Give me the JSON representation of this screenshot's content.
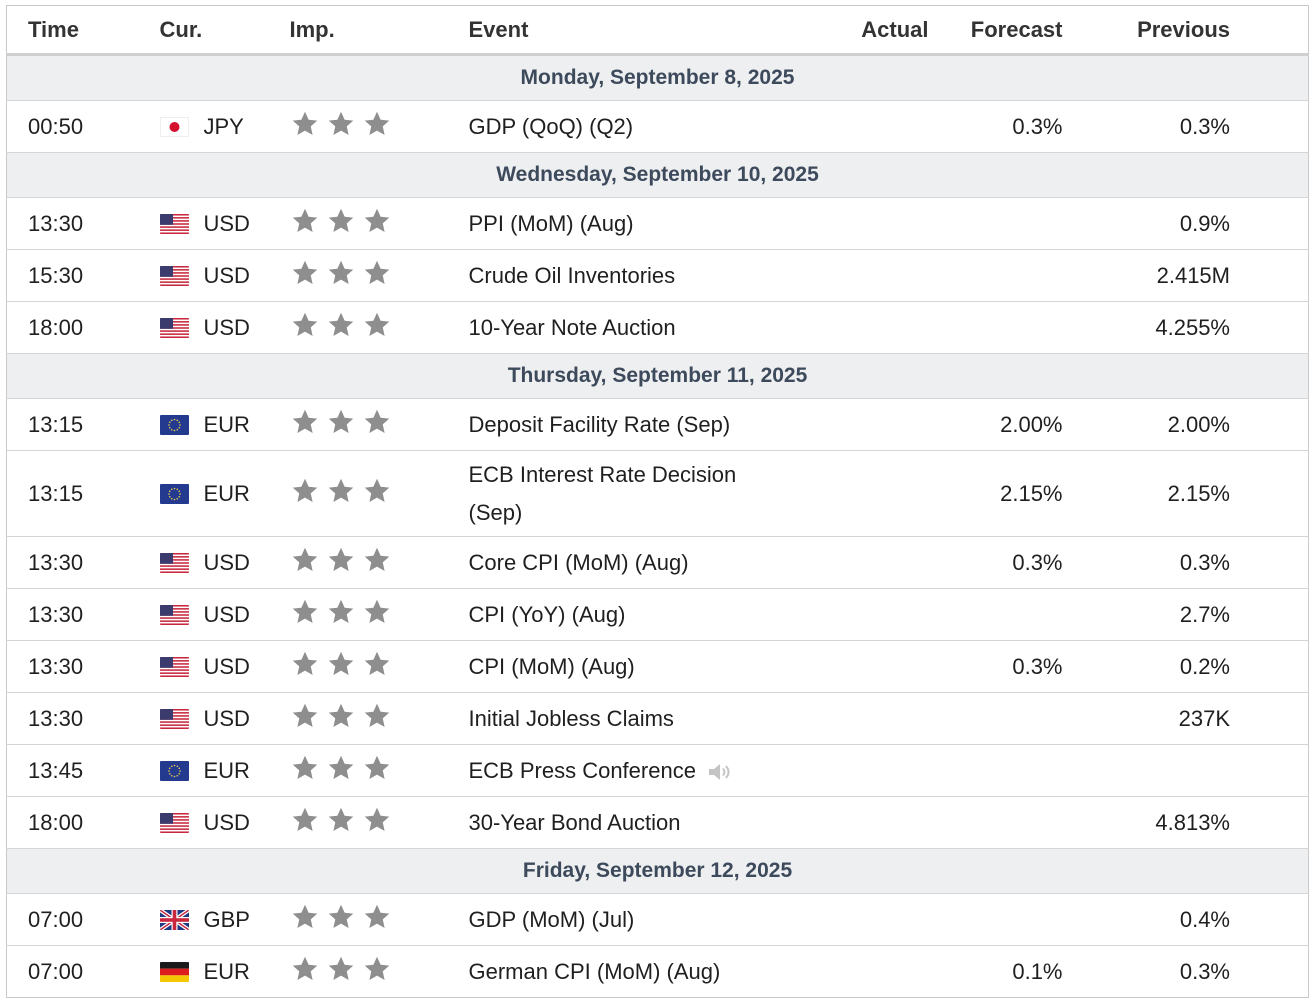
{
  "headers": {
    "time": "Time",
    "cur": "Cur.",
    "imp": "Imp.",
    "event": "Event",
    "actual": "Actual",
    "forecast": "Forecast",
    "previous": "Previous"
  },
  "colors": {
    "day_bg": "#eeeff1",
    "day_text": "#3d4a5c",
    "star": "#8e8e8e",
    "border": "#d5d5d5"
  },
  "sections": [
    {
      "day": "Monday, September 8, 2025",
      "rows": [
        {
          "time": "00:50",
          "flag": "jp-flag-icon",
          "cur": "JPY",
          "event": "GDP (QoQ) (Q2)",
          "actual": "",
          "forecast": "0.3%",
          "previous": "0.3%"
        }
      ]
    },
    {
      "day": "Wednesday, September 10, 2025",
      "rows": [
        {
          "time": "13:30",
          "flag": "us-flag-icon",
          "cur": "USD",
          "event": "PPI (MoM) (Aug)",
          "actual": "",
          "forecast": "",
          "previous": "0.9%"
        },
        {
          "time": "15:30",
          "flag": "us-flag-icon",
          "cur": "USD",
          "event": "Crude Oil Inventories",
          "actual": "",
          "forecast": "",
          "previous": "2.415M"
        },
        {
          "time": "18:00",
          "flag": "us-flag-icon",
          "cur": "USD",
          "event": "10-Year Note Auction",
          "actual": "",
          "forecast": "",
          "previous": "4.255%"
        }
      ]
    },
    {
      "day": "Thursday, September 11, 2025",
      "rows": [
        {
          "time": "13:15",
          "flag": "eu-flag-icon",
          "cur": "EUR",
          "event": "Deposit Facility Rate (Sep)",
          "actual": "",
          "forecast": "2.00%",
          "previous": "2.00%"
        },
        {
          "time": "13:15",
          "flag": "eu-flag-icon",
          "cur": "EUR",
          "event": "ECB Interest Rate Decision (Sep)",
          "actual": "",
          "forecast": "2.15%",
          "previous": "2.15%",
          "tall": true
        },
        {
          "time": "13:30",
          "flag": "us-flag-icon",
          "cur": "USD",
          "event": "Core CPI (MoM) (Aug)",
          "actual": "",
          "forecast": "0.3%",
          "previous": "0.3%"
        },
        {
          "time": "13:30",
          "flag": "us-flag-icon",
          "cur": "USD",
          "event": "CPI (YoY) (Aug)",
          "actual": "",
          "forecast": "",
          "previous": "2.7%"
        },
        {
          "time": "13:30",
          "flag": "us-flag-icon",
          "cur": "USD",
          "event": "CPI (MoM) (Aug)",
          "actual": "",
          "forecast": "0.3%",
          "previous": "0.2%"
        },
        {
          "time": "13:30",
          "flag": "us-flag-icon",
          "cur": "USD",
          "event": "Initial Jobless Claims",
          "actual": "",
          "forecast": "",
          "previous": "237K"
        },
        {
          "time": "13:45",
          "flag": "eu-flag-icon",
          "cur": "EUR",
          "event": "ECB Press Conference",
          "actual": "",
          "forecast": "",
          "previous": "",
          "speaker": "speaker-icon"
        },
        {
          "time": "18:00",
          "flag": "us-flag-icon",
          "cur": "USD",
          "event": "30-Year Bond Auction",
          "actual": "",
          "forecast": "",
          "previous": "4.813%"
        }
      ]
    },
    {
      "day": "Friday, September 12, 2025",
      "rows": [
        {
          "time": "07:00",
          "flag": "gb-flag-icon",
          "cur": "GBP",
          "event": "GDP (MoM) (Jul)",
          "actual": "",
          "forecast": "",
          "previous": "0.4%"
        },
        {
          "time": "07:00",
          "flag": "de-flag-icon",
          "cur": "EUR",
          "event": "German CPI (MoM) (Aug)",
          "actual": "",
          "forecast": "0.1%",
          "previous": "0.3%"
        }
      ]
    }
  ]
}
